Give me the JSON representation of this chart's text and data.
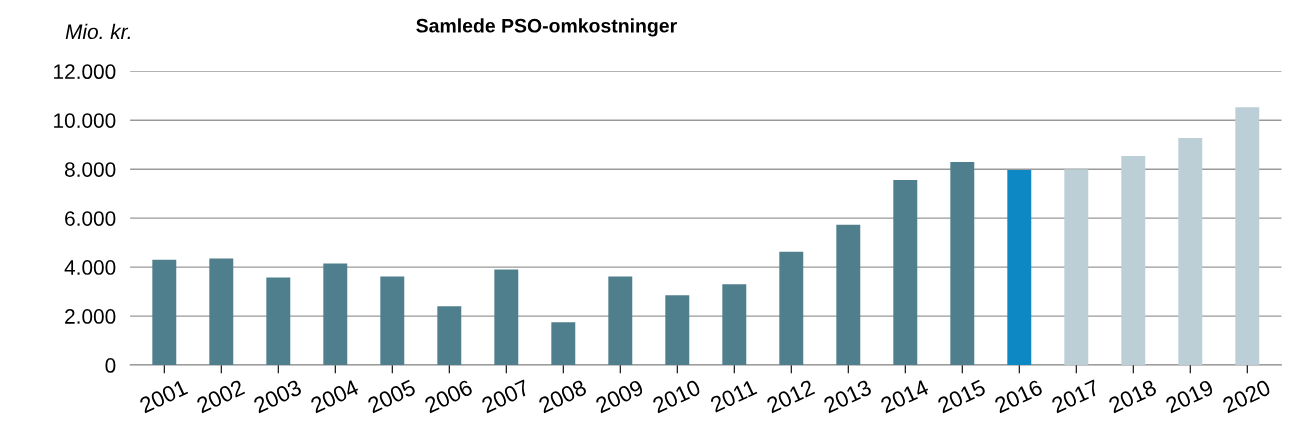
{
  "chart_data": {
    "type": "bar",
    "title": "Samlede PSO-omkostninger",
    "ylabel": "Mio. kr.",
    "categories": [
      "2001",
      "2002",
      "2003",
      "2004",
      "2005",
      "2006",
      "2007",
      "2008",
      "2009",
      "2010",
      "2011",
      "2012",
      "2013",
      "2014",
      "2015",
      "2016",
      "2017",
      "2018",
      "2019",
      "2020"
    ],
    "values": [
      4300,
      4350,
      3580,
      4150,
      3620,
      2400,
      3900,
      1750,
      3620,
      2850,
      3300,
      4630,
      5730,
      7560,
      8290,
      7970,
      8000,
      8540,
      9270,
      10530
    ],
    "colors": [
      "#4f7f8d",
      "#4f7f8d",
      "#4f7f8d",
      "#4f7f8d",
      "#4f7f8d",
      "#4f7f8d",
      "#4f7f8d",
      "#4f7f8d",
      "#4f7f8d",
      "#4f7f8d",
      "#4f7f8d",
      "#4f7f8d",
      "#4f7f8d",
      "#4f7f8d",
      "#4f7f8d",
      "#0e88c4",
      "#bccfd6",
      "#bccfd6",
      "#bccfd6",
      "#bccfd6"
    ],
    "ylim": [
      0,
      12000
    ],
    "yticks": [
      {
        "value": 0,
        "label": "0"
      },
      {
        "value": 2000,
        "label": "2.000"
      },
      {
        "value": 4000,
        "label": "4.000"
      },
      {
        "value": 6000,
        "label": "6.000"
      },
      {
        "value": 8000,
        "label": "8.000"
      },
      {
        "value": 10000,
        "label": "10.000"
      },
      {
        "value": 12000,
        "label": "12.000"
      }
    ],
    "grid": "y"
  }
}
